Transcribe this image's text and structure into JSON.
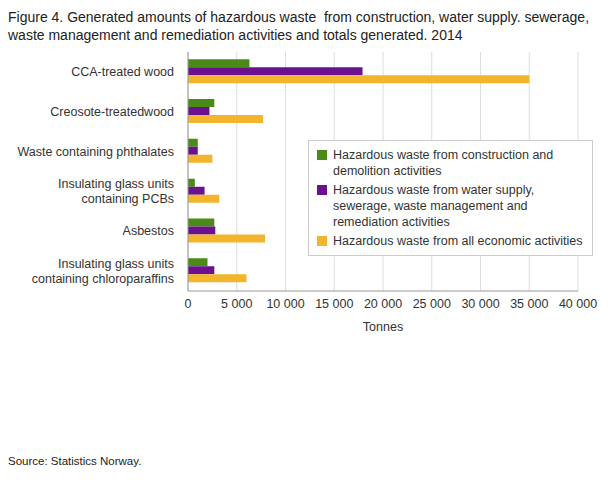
{
  "chart_data": {
    "type": "bar",
    "orientation": "horizontal",
    "title": "Figure 4. Generated amounts of hazardous waste  from construction, water supply. sewerage, waste management and remediation activities and totals generated. 2014",
    "source": "Source: Statistics Norway.",
    "x_label": "Tonnes",
    "categories": [
      "CCA-treated wood",
      "Creosote-treatedwood",
      "Waste containing phthalates",
      "Insulating glass units containing PCBs",
      "Asbestos",
      "Insulating glass units containing chloroparaffins"
    ],
    "series": [
      {
        "name": "Hazardous waste from construction and demolition activities",
        "color": "#4a8a16",
        "values": [
          6300,
          2700,
          1000,
          700,
          2700,
          2000
        ]
      },
      {
        "name": "Hazardous waste from water supply, sewerage, waste management and remediation activities",
        "color": "#6b1190",
        "values": [
          17900,
          2200,
          1000,
          1700,
          2800,
          2700
        ]
      },
      {
        "name": "Hazardous waste from all economic activities",
        "color": "#f2b52d",
        "values": [
          35000,
          7700,
          2500,
          3200,
          7900,
          6000
        ]
      }
    ],
    "xlim": [
      0,
      40000
    ],
    "xticks": [
      0,
      {
        "value": 5000,
        "label": "5 000"
      },
      {
        "value": 10000,
        "label": "10 000"
      },
      {
        "value": 15000,
        "label": "15 000"
      },
      {
        "value": 20000,
        "label": "20 000"
      },
      {
        "value": 25000,
        "label": "25 000"
      },
      {
        "value": 30000,
        "label": "30 000"
      },
      {
        "value": 35000,
        "label": "35 000"
      },
      {
        "value": 40000,
        "label": "40 000"
      }
    ],
    "grid": true,
    "legend": "right"
  }
}
